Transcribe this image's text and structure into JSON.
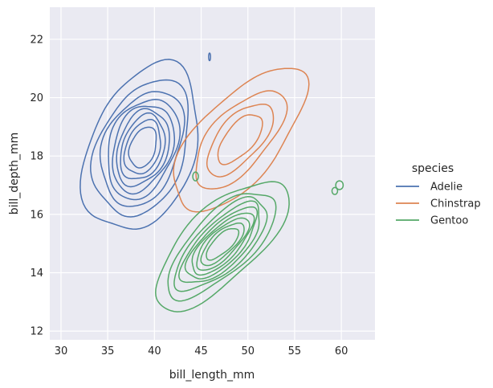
{
  "chart_data": {
    "type": "kde-contour",
    "xlabel": "bill_length_mm",
    "ylabel": "bill_depth_mm",
    "xlim": [
      28.8,
      63.6
    ],
    "ylim": [
      11.7,
      23.1
    ],
    "xticks": [
      30,
      35,
      40,
      45,
      50,
      55,
      60
    ],
    "yticks": [
      12,
      14,
      16,
      18,
      20,
      22
    ],
    "grid": true,
    "legend": {
      "title": "species",
      "placement": "right"
    },
    "series": [
      {
        "name": "Adelie",
        "color": "#4c72b0",
        "center": [
          38.8,
          18.3
        ],
        "sd": [
          2.6,
          1.2
        ],
        "corr": 0.3,
        "levels": [
          0.06,
          0.15,
          0.25,
          0.35,
          0.45,
          0.55,
          0.65,
          0.75,
          0.85
        ],
        "islands": [
          [
            45.9,
            21.4,
            0.1,
            0.13
          ]
        ]
      },
      {
        "name": "Chinstrap",
        "color": "#dd8452",
        "center": [
          49.2,
          18.6
        ],
        "sd": [
          3.1,
          1.1
        ],
        "corr": 0.65,
        "levels": [
          0.08,
          0.3,
          0.52,
          0.74
        ]
      },
      {
        "name": "Gentoo",
        "color": "#55a868",
        "center": [
          47.3,
          15.0
        ],
        "sd": [
          3.0,
          0.95
        ],
        "corr": 0.72,
        "levels": [
          0.06,
          0.15,
          0.25,
          0.35,
          0.45,
          0.55,
          0.65,
          0.75,
          0.85
        ],
        "islands": [
          [
            44.4,
            17.3,
            0.3,
            0.15
          ],
          [
            59.8,
            17.0,
            0.4,
            0.15
          ],
          [
            59.3,
            16.8,
            0.3,
            0.12
          ]
        ]
      }
    ]
  }
}
